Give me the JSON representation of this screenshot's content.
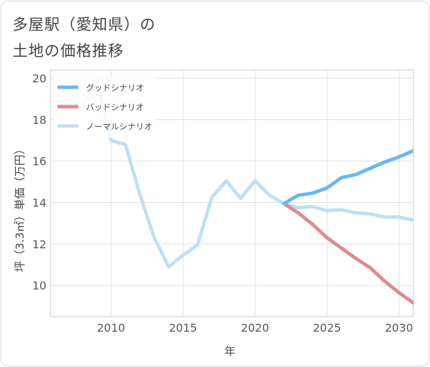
{
  "page": {
    "title_line1": "多屋駅（愛知県）の",
    "title_line2": "土地の価格推移"
  },
  "chart_data": {
    "type": "line",
    "title": "多屋駅（愛知県）の土地の価格推移",
    "xlabel": "年",
    "ylabel": "坪（3.3㎡）単価（万円）",
    "xlim": [
      2005.8,
      2031
    ],
    "ylim": [
      8.5,
      20.4
    ],
    "xticks": [
      2010,
      2015,
      2020,
      2025,
      2030
    ],
    "yticks": [
      10,
      12,
      14,
      16,
      18,
      20
    ],
    "grid": true,
    "legend_position": "top-left",
    "series": [
      {
        "name": "グッドシナリオ",
        "color": "#6bb6ee",
        "x": [
          2022,
          2023,
          2024,
          2025,
          2026,
          2027,
          2028,
          2029,
          2030,
          2031
        ],
        "y": [
          13.95,
          14.35,
          14.45,
          14.7,
          15.2,
          15.35,
          15.65,
          15.95,
          16.2,
          16.5
        ]
      },
      {
        "name": "バッドシナリオ",
        "color": "#dd8a91",
        "x": [
          2022,
          2023,
          2024,
          2025,
          2026,
          2027,
          2028,
          2029,
          2030,
          2031
        ],
        "y": [
          13.95,
          13.5,
          12.95,
          12.3,
          11.8,
          11.3,
          10.85,
          10.2,
          9.65,
          9.15
        ]
      },
      {
        "name": "ノーマルシナリオ",
        "color": "#bfe0f0",
        "x": [
          2008,
          2009,
          2010,
          2011,
          2012,
          2013,
          2014,
          2015,
          2016,
          2017,
          2018,
          2019,
          2020,
          2021,
          2022,
          2023,
          2024,
          2025,
          2026,
          2027,
          2028,
          2029,
          2030,
          2031
        ],
        "y": [
          18.5,
          19.9,
          17.0,
          16.8,
          14.4,
          12.3,
          10.9,
          11.45,
          11.95,
          14.25,
          15.05,
          14.2,
          15.05,
          14.35,
          13.95,
          13.75,
          13.8,
          13.6,
          13.65,
          13.5,
          13.45,
          13.3,
          13.3,
          13.15
        ]
      }
    ]
  }
}
